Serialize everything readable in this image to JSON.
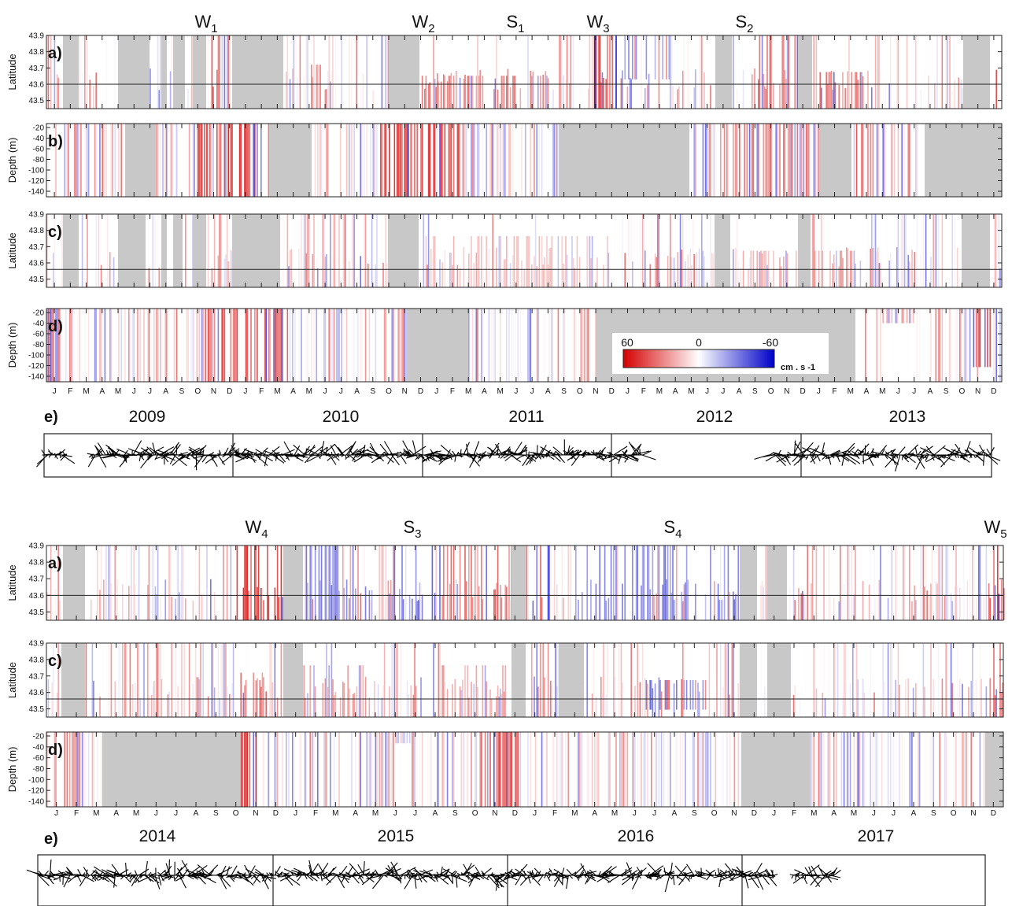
{
  "chart_data": {
    "type": "heatmap",
    "colorbar": {
      "ticks": [
        "60",
        "0",
        "-60"
      ],
      "unit": "cm . s -1",
      "colors": {
        "positive": "#d40000",
        "zero": "#ffffff",
        "negative": "#0000c8"
      }
    },
    "gap_color": "#c8c8c8",
    "month_labels": [
      "J",
      "F",
      "M",
      "A",
      "M",
      "J",
      "J",
      "A",
      "S",
      "O",
      "N",
      "D"
    ],
    "top": {
      "years": [
        "2009",
        "2010",
        "2011",
        "2012",
        "2013"
      ],
      "events": [
        {
          "base": "W",
          "sub": "1"
        },
        {
          "base": "W",
          "sub": "2"
        },
        {
          "base": "S",
          "sub": "1"
        },
        {
          "base": "W",
          "sub": "3"
        },
        {
          "base": "S",
          "sub": "2"
        }
      ],
      "panels": [
        {
          "label": "a)",
          "ylabel": "Latitude",
          "yticks": [
            "43.9",
            "43.8",
            "43.7",
            "43.6",
            "43.5"
          ],
          "line_value": 43.6
        },
        {
          "label": "b)",
          "ylabel": "Depth (m)",
          "yticks": [
            "-20",
            "-40",
            "-60",
            "-80",
            "-100",
            "-120",
            "-140"
          ]
        },
        {
          "label": "c)",
          "ylabel": "Latitude",
          "yticks": [
            "43.9",
            "43.8",
            "43.7",
            "43.6",
            "43.5"
          ],
          "line_value": 43.56
        },
        {
          "label": "d)",
          "ylabel": "Depth (m)",
          "yticks": [
            "-20",
            "-40",
            "-60",
            "-80",
            "-100",
            "-120",
            "-140"
          ]
        },
        {
          "label": "e)"
        }
      ]
    },
    "bottom": {
      "years": [
        "2014",
        "2015",
        "2016",
        "2017"
      ],
      "events": [
        {
          "base": "W",
          "sub": "4"
        },
        {
          "base": "S",
          "sub": "3"
        },
        {
          "base": "S",
          "sub": "4"
        },
        {
          "base": "W",
          "sub": "5"
        }
      ],
      "panels": [
        {
          "label": "a)",
          "ylabel": "Latitude",
          "yticks": [
            "43.9",
            "43.8",
            "43.7",
            "43.6",
            "43.5"
          ],
          "line_value": 43.6
        },
        {
          "label": "c)",
          "ylabel": "Latitude",
          "yticks": [
            "43.9",
            "43.8",
            "43.7",
            "43.6",
            "43.5"
          ],
          "line_value": 43.56
        },
        {
          "label": "d)",
          "ylabel": "Depth (m)",
          "yticks": [
            "-20",
            "-40",
            "-60",
            "-80",
            "-100",
            "-120",
            "-140"
          ]
        },
        {
          "label": "e)"
        }
      ]
    }
  }
}
